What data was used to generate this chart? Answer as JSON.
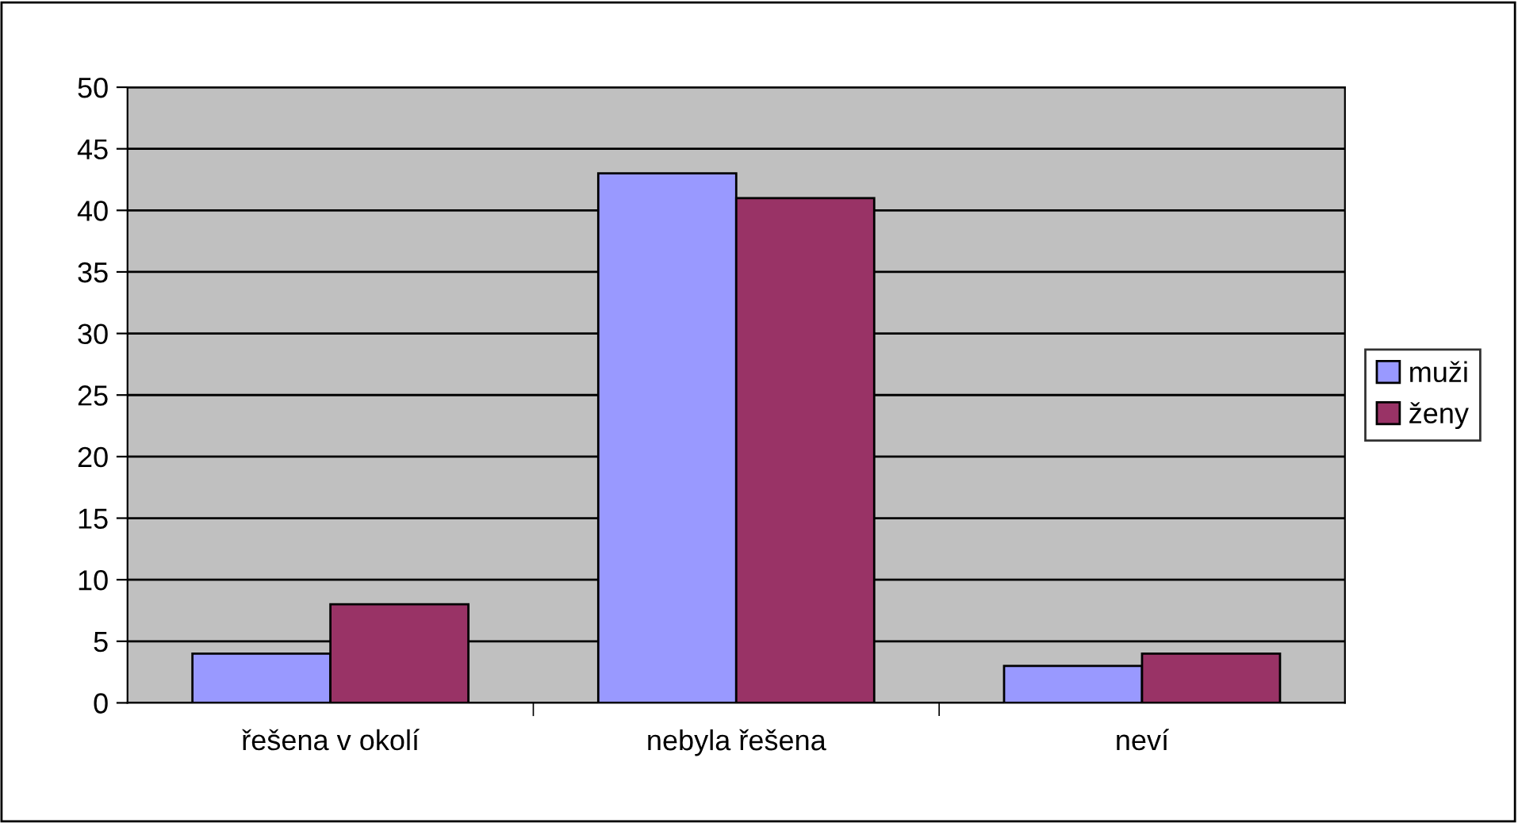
{
  "chart_data": {
    "type": "bar",
    "categories": [
      "řešena v okolí",
      "nebyla řešena",
      "neví"
    ],
    "series": [
      {
        "name": "muži",
        "color": "#9999ff",
        "values": [
          4,
          43,
          3
        ]
      },
      {
        "name": "ženy",
        "color": "#993366",
        "values": [
          8,
          41,
          4
        ]
      }
    ],
    "ylim": [
      0,
      50
    ],
    "yticks": [
      0,
      5,
      10,
      15,
      20,
      25,
      30,
      35,
      40,
      45,
      50
    ],
    "grid": "y",
    "legend": "right"
  }
}
